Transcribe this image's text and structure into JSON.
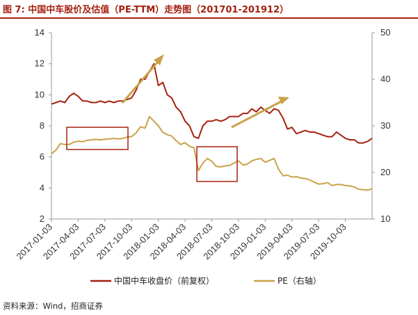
{
  "header": {
    "title": "图 7:  中国中车股价及估值（PE-TTM）走势图（201701-201912）"
  },
  "footer": {
    "source": "资料来源：Wind，招商证券"
  },
  "colors": {
    "price": "#a5200f",
    "pe": "#c9a24a",
    "rule": "#a5200f",
    "axis": "#9a9a9a"
  },
  "chart_data": {
    "type": "line",
    "title": "中国中车股价及估值（PE-TTM）走势图（201701-201912）",
    "x_tick_labels": [
      "2017-01-03",
      "2017-04-03",
      "2017-07-03",
      "2017-10-03",
      "2018-01-03",
      "2018-04-03",
      "2018-07-03",
      "2018-10-03",
      "2019-01-03",
      "2019-04-03",
      "2019-07-03",
      "2019-10-03"
    ],
    "x_range": [
      0,
      36
    ],
    "y_left": {
      "range": [
        2,
        14
      ],
      "ticks": [
        2,
        4,
        6,
        8,
        10,
        12,
        14
      ]
    },
    "y_right": {
      "range": [
        10,
        50
      ],
      "ticks": [
        10,
        20,
        30,
        40,
        50
      ]
    },
    "series": [
      {
        "name": "中国中车收盘价（前复权）",
        "axis": "left",
        "x": [
          0,
          0.5,
          1,
          1.5,
          2,
          2.5,
          3,
          3.5,
          4,
          4.5,
          5,
          5.5,
          6,
          6.5,
          7,
          7.5,
          8,
          8.5,
          9,
          9.5,
          10,
          10.5,
          11,
          11.5,
          12,
          12.5,
          13,
          13.5,
          14,
          14.5,
          15,
          15.5,
          16,
          16.5,
          17,
          17.5,
          18,
          18.5,
          19,
          19.5,
          20,
          20.5,
          21,
          21.5,
          22,
          22.5,
          23,
          23.5,
          24,
          24.5,
          25,
          25.5,
          26,
          26.5,
          27,
          27.5,
          28,
          28.5,
          29,
          29.5,
          30,
          30.5,
          31,
          31.5,
          32,
          32.5,
          33,
          33.5,
          34,
          34.5,
          35,
          35.5,
          36
        ],
        "values": [
          9.4,
          9.5,
          9.6,
          9.5,
          9.9,
          10.1,
          9.9,
          9.6,
          9.6,
          9.5,
          9.5,
          9.6,
          9.5,
          9.6,
          9.5,
          9.6,
          9.6,
          9.7,
          9.8,
          10.3,
          11.0,
          11.0,
          11.5,
          12.0,
          10.6,
          10.8,
          10.0,
          9.8,
          9.2,
          8.9,
          8.3,
          8.0,
          7.3,
          7.2,
          8.0,
          8.3,
          8.3,
          8.4,
          8.3,
          8.4,
          8.6,
          8.6,
          8.6,
          8.8,
          8.8,
          9.1,
          8.9,
          9.2,
          9.0,
          8.8,
          9.1,
          9.0,
          8.5,
          7.8,
          7.9,
          7.5,
          7.6,
          7.7,
          7.6,
          7.6,
          7.5,
          7.4,
          7.3,
          7.3,
          7.6,
          7.4,
          7.2,
          7.1,
          7.1,
          6.9,
          6.9,
          7.0,
          7.2
        ]
      },
      {
        "name": "PE（右轴）",
        "axis": "right",
        "x": [
          0,
          0.5,
          1,
          1.5,
          2,
          2.5,
          3,
          3.5,
          4,
          4.5,
          5,
          5.5,
          6,
          6.5,
          7,
          7.5,
          8,
          8.5,
          9,
          9.5,
          10,
          10.5,
          11,
          11.5,
          12,
          12.5,
          13,
          13.5,
          14,
          14.5,
          15,
          15.5,
          16,
          16.5,
          17,
          17.5,
          18,
          18.5,
          19,
          19.5,
          20,
          20.5,
          21,
          21.5,
          22,
          22.5,
          23,
          23.5,
          24,
          24.5,
          25,
          25.5,
          26,
          26.5,
          27,
          27.5,
          28,
          28.5,
          29,
          29.5,
          30,
          30.5,
          31,
          31.5,
          32,
          32.5,
          33,
          33.5,
          34,
          34.5,
          35,
          35.5,
          36
        ],
        "values": [
          24.0,
          24.8,
          26.2,
          26.0,
          26.0,
          26.5,
          26.7,
          26.6,
          26.9,
          27.0,
          27.1,
          27.0,
          27.1,
          27.2,
          27.3,
          27.2,
          27.3,
          27.6,
          27.7,
          28.5,
          29.8,
          29.5,
          32.0,
          31.0,
          30.0,
          28.6,
          28.1,
          27.8,
          26.8,
          26.0,
          26.4,
          25.6,
          25.3,
          20.4,
          22.0,
          23.0,
          22.4,
          21.3,
          21.2,
          21.4,
          21.5,
          22.0,
          22.5,
          21.6,
          21.8,
          22.5,
          22.8,
          23.0,
          22.2,
          22.6,
          23.0,
          20.7,
          19.3,
          19.4,
          19.0,
          19.1,
          18.8,
          18.7,
          18.4,
          17.9,
          17.5,
          17.6,
          17.8,
          17.2,
          17.4,
          17.4,
          17.2,
          17.1,
          16.9,
          16.4,
          16.3,
          16.2,
          16.5
        ]
      }
    ]
  }
}
